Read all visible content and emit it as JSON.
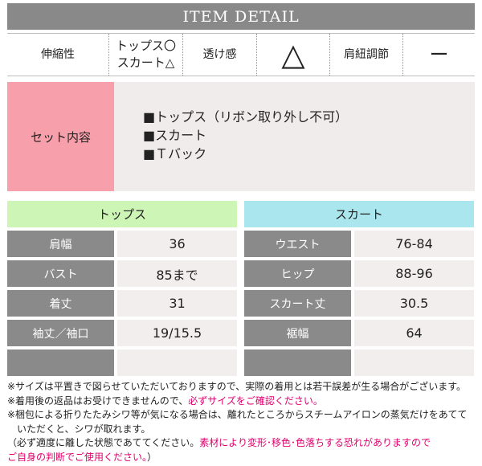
{
  "header": {
    "title": "ITEM DETAIL"
  },
  "specs": {
    "stretch_label": "伸縮性",
    "stretch_value_line1": "トップス〇",
    "stretch_value_line2": "スカート△",
    "sheer_label": "透け感",
    "sheer_value": "△",
    "strap_label": "肩紐調節",
    "strap_value": "ー"
  },
  "set": {
    "label": "セット内容",
    "items": [
      "■トップス（リボン取り外し不可）",
      "■スカート",
      "■Ｔバック"
    ]
  },
  "tops": {
    "title": "トップス",
    "rows": [
      {
        "label": "肩幅",
        "value": "36"
      },
      {
        "label": "バスト",
        "value": "85まで"
      },
      {
        "label": "着丈",
        "value": "31"
      },
      {
        "label": "袖丈／袖口",
        "value": "19/15.5"
      },
      {
        "label": "",
        "value": ""
      }
    ]
  },
  "skirt": {
    "title": "スカート",
    "rows": [
      {
        "label": "ウエスト",
        "value": "76-84"
      },
      {
        "label": "ヒップ",
        "value": "88-96"
      },
      {
        "label": "スカート丈",
        "value": "30.5"
      },
      {
        "label": "裾幅",
        "value": "64"
      },
      {
        "label": "",
        "value": ""
      }
    ]
  },
  "notes": {
    "line1": "※サイズは平置きで図らせていただいておりますので、実際の着用とは若干誤差が生る場合がございます。",
    "line2_a": "※着用後の返品はお受けできませんので、",
    "line2_red": "必ずサイズをご確認ください。",
    "line3": "※梱包による折りたたみシワ等が気になる場合は、離れたところからスチームアイロンの蒸気だけをあてて",
    "line4": "　いただくと、シワが取れます。",
    "line5_a": "（必ず適度に離した状態であててください。",
    "line5_red": "素材により変形･移色･色落ちする恐れがありますので",
    "line6_red": "ご自身の判断でご使用ください。",
    "line6_b": "）"
  },
  "colors": {
    "header_bg": "#898989",
    "set_label_bg": "#f7a0ac",
    "tops_header_bg": "#cdf5b5",
    "skirt_header_bg": "#aae6ee",
    "note_accent": "#e0006e"
  }
}
